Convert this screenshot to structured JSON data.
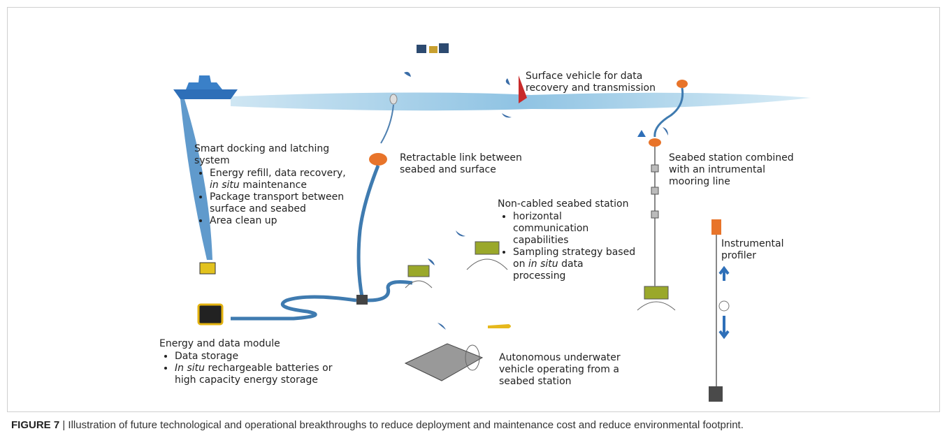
{
  "figure": {
    "label": "FIGURE 7",
    "caption": "| Illustration of future technological and operational breakthroughs to reduce deployment and maintenance cost and reduce environmental footprint."
  },
  "surface_vehicle": {
    "text": "Surface vehicle for data recovery and transmission"
  },
  "docking": {
    "title": "Smart docking and latching system",
    "items": [
      [
        {
          "text": "Energy refill, data recovery, "
        },
        {
          "text": "in situ",
          "italic": true
        },
        {
          "text": " maintenance"
        }
      ],
      [
        {
          "text": "Package transport between surface and seabed"
        }
      ],
      [
        {
          "text": "Area clean up"
        }
      ]
    ]
  },
  "retractable": {
    "text": "Retractable link between seabed and surface"
  },
  "seabed_station": {
    "text": "Seabed station combined with an intrumental mooring line"
  },
  "non_cabled": {
    "title": "Non-cabled seabed station",
    "items": [
      [
        {
          "text": "horizontal communication capabilities"
        }
      ],
      [
        {
          "text": "Sampling strategy based on "
        },
        {
          "text": "in situ",
          "italic": true
        },
        {
          "text": " data processing"
        }
      ]
    ]
  },
  "profiler": {
    "text": "Instrumental profiler"
  },
  "energy": {
    "title": "Energy and data module",
    "items": [
      [
        {
          "text": "Data storage"
        }
      ],
      [
        {
          "text": "In situ",
          "italic": true
        },
        {
          "text": " rechargeable batteries or high capacity energy storage"
        }
      ]
    ]
  },
  "auv": {
    "text": "Autonomous underwater vehicle operating from a seabed station"
  }
}
